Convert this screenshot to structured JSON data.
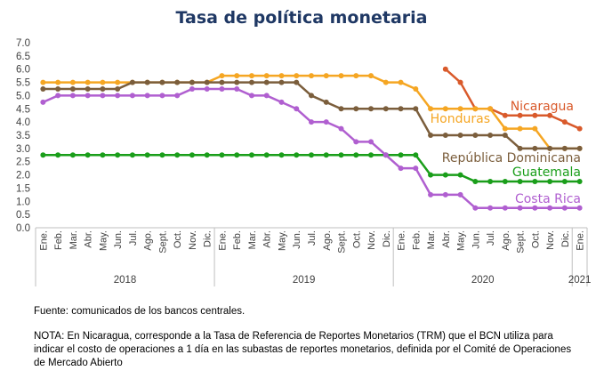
{
  "chart_data": {
    "type": "line",
    "title": "Tasa de política monetaria",
    "xlabel": "",
    "ylabel": "",
    "ylim": [
      0,
      7
    ],
    "yticks": [
      "0.0",
      "0.5",
      "1.0",
      "1.5",
      "2.0",
      "2.5",
      "3.0",
      "3.5",
      "4.0",
      "4.5",
      "5.0",
      "5.5",
      "6.0",
      "6.5",
      "7.0"
    ],
    "grid": false,
    "x": [
      "Ene.",
      "Feb.",
      "Mar.",
      "Abr.",
      "May.",
      "Jun.",
      "Jul.",
      "Ago.",
      "Sept.",
      "Oct.",
      "Nov.",
      "Dic.",
      "Ene.",
      "Feb.",
      "Mar.",
      "Abr.",
      "May.",
      "Jun.",
      "Jul.",
      "Ago.",
      "Sept.",
      "Oct.",
      "Nov.",
      "Dic.",
      "Ene.",
      "Feb.",
      "Mar.",
      "Abr.",
      "May.",
      "Jun.",
      "Jul.",
      "Ago.",
      "Sept.",
      "Oct.",
      "Nov.",
      "Dic.",
      "Ene."
    ],
    "years": [
      {
        "label": "2018",
        "start": 0,
        "end": 11
      },
      {
        "label": "2019",
        "start": 12,
        "end": 23
      },
      {
        "label": "2020",
        "start": 24,
        "end": 35
      },
      {
        "label": "2021",
        "start": 36,
        "end": 36
      }
    ],
    "series": [
      {
        "name": "Nicaragua",
        "color": "#d95a2b",
        "values": [
          null,
          null,
          null,
          null,
          null,
          null,
          null,
          null,
          null,
          null,
          null,
          null,
          null,
          null,
          null,
          null,
          null,
          null,
          null,
          null,
          null,
          null,
          null,
          null,
          null,
          null,
          null,
          6.0,
          5.5,
          4.5,
          4.5,
          4.25,
          4.25,
          4.25,
          4.25,
          4.0,
          3.75
        ]
      },
      {
        "name": "Honduras",
        "color": "#f5a623",
        "values": [
          5.5,
          5.5,
          5.5,
          5.5,
          5.5,
          5.5,
          5.5,
          5.5,
          5.5,
          5.5,
          5.5,
          5.5,
          5.75,
          5.75,
          5.75,
          5.75,
          5.75,
          5.75,
          5.75,
          5.75,
          5.75,
          5.75,
          5.75,
          5.5,
          5.5,
          5.25,
          4.5,
          4.5,
          4.5,
          4.5,
          4.5,
          3.75,
          3.75,
          3.75,
          3.0,
          3.0,
          3.0
        ]
      },
      {
        "name": "República Dominicana",
        "color": "#7b5e3c",
        "values": [
          5.25,
          5.25,
          5.25,
          5.25,
          5.25,
          5.25,
          5.5,
          5.5,
          5.5,
          5.5,
          5.5,
          5.5,
          5.5,
          5.5,
          5.5,
          5.5,
          5.5,
          5.5,
          5.0,
          4.75,
          4.5,
          4.5,
          4.5,
          4.5,
          4.5,
          4.5,
          3.5,
          3.5,
          3.5,
          3.5,
          3.5,
          3.5,
          3.0,
          3.0,
          3.0,
          3.0,
          3.0
        ]
      },
      {
        "name": "Guatemala",
        "color": "#1a9e1a",
        "values": [
          2.75,
          2.75,
          2.75,
          2.75,
          2.75,
          2.75,
          2.75,
          2.75,
          2.75,
          2.75,
          2.75,
          2.75,
          2.75,
          2.75,
          2.75,
          2.75,
          2.75,
          2.75,
          2.75,
          2.75,
          2.75,
          2.75,
          2.75,
          2.75,
          2.75,
          2.75,
          2.0,
          2.0,
          2.0,
          1.75,
          1.75,
          1.75,
          1.75,
          1.75,
          1.75,
          1.75,
          1.75
        ]
      },
      {
        "name": "Costa Rica",
        "color": "#b05fd0",
        "values": [
          4.75,
          5.0,
          5.0,
          5.0,
          5.0,
          5.0,
          5.0,
          5.0,
          5.0,
          5.0,
          5.25,
          5.25,
          5.25,
          5.25,
          5.0,
          5.0,
          4.75,
          4.5,
          4.0,
          4.0,
          3.75,
          3.25,
          3.25,
          2.75,
          2.25,
          2.25,
          1.25,
          1.25,
          1.25,
          0.75,
          0.75,
          0.75,
          0.75,
          0.75,
          0.75,
          0.75,
          0.75
        ]
      }
    ]
  },
  "source_text": "Fuente: comunicados de los bancos centrales.",
  "note_text": "NOTA: En Nicaragua, corresponde a la Tasa de Referencia de Reportes Monetarios (TRM) que el BCN utiliza para indicar el costo de operaciones a 1 día en las subastas de reportes monetarios, definida por el Comité de Operaciones de Mercado Abierto"
}
